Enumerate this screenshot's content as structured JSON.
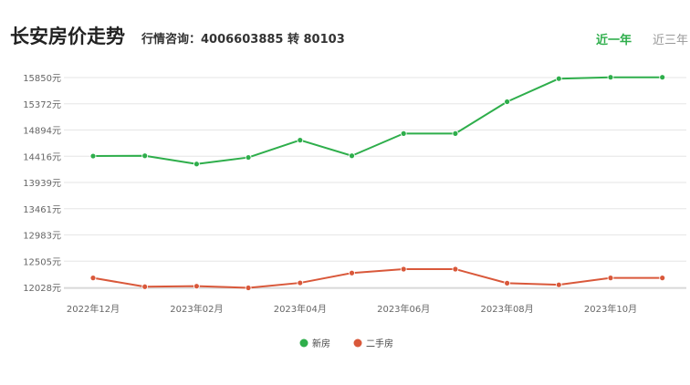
{
  "header": {
    "title": "长安房价走势",
    "hotline": "行情咨询：4006603885 转 80103"
  },
  "tabs": [
    {
      "label": "近一年",
      "active": true
    },
    {
      "label": "近三年",
      "active": false
    }
  ],
  "colors": {
    "new_house": "#2eae4b",
    "second_hand": "#d9583a",
    "grid": "#e6e6e6",
    "tab_active": "#2eae4b",
    "tab_inactive": "#999999"
  },
  "chart_data": {
    "type": "line",
    "x": [
      "2022年12月",
      "2023年01月",
      "2023年02月",
      "2023年03月",
      "2023年04月",
      "2023年05月",
      "2023年06月",
      "2023年07月",
      "2023年08月",
      "2023年09月",
      "2023年10月",
      "2023年11月"
    ],
    "x_tick_labels": [
      "2022年12月",
      "2023年02月",
      "2023年04月",
      "2023年06月",
      "2023年08月",
      "2023年10月"
    ],
    "y_ticks": [
      "15850元",
      "15372元",
      "14894元",
      "14416元",
      "13939元",
      "13461元",
      "12983元",
      "12505元",
      "12028元"
    ],
    "ylim": [
      12028,
      15850
    ],
    "grid": true,
    "legend_position": "bottom-center",
    "series": [
      {
        "name": "新房",
        "values": [
          14420,
          14425,
          14275,
          14395,
          14710,
          14425,
          14830,
          14830,
          15410,
          15830,
          15855,
          15855
        ]
      },
      {
        "name": "二手房",
        "values": [
          12200,
          12040,
          12050,
          12020,
          12110,
          12290,
          12360,
          12360,
          12105,
          12075,
          12200,
          12200
        ]
      }
    ]
  }
}
